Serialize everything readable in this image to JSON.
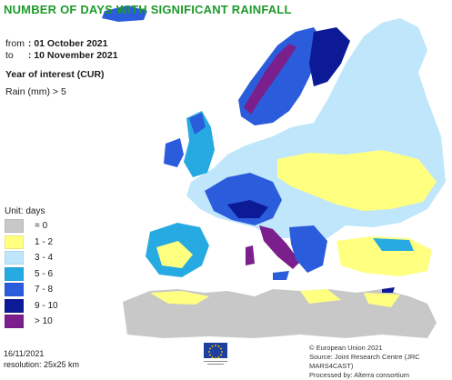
{
  "header": {
    "title": "NUMBER OF DAYS WITH SIGNIFICANT RAINFALL",
    "from_label": "from",
    "from_value": ": 01 October 2021",
    "to_label": "to",
    "to_value": ": 10 November 2021",
    "year_of_interest": "Year of interest (CUR)",
    "parameter": "Rain (mm) > 5"
  },
  "legend": {
    "unit": "Unit: days",
    "classes": [
      {
        "label": "= 0",
        "color": "#c8c8c8"
      },
      {
        "label": "1 - 2",
        "color": "#ffff80"
      },
      {
        "label": "3 - 4",
        "color": "#bfe6fa"
      },
      {
        "label": "5 - 6",
        "color": "#27aae1"
      },
      {
        "label": "7 - 8",
        "color": "#2a5cdc"
      },
      {
        "label": "9 - 10",
        "color": "#0d1a96"
      },
      {
        "label": "> 10",
        "color": "#7b1f8c"
      }
    ]
  },
  "map": {
    "land_no_data_color": "#ffffff",
    "outside_color": "#c8c8c8"
  },
  "footer": {
    "date": "16/11/2021",
    "resolution": "resolution: 25x25 km",
    "copyright": "© European Union 2021",
    "source": "Source: Joint Research Centre (JRC MARS4CAST)",
    "processed": "Processed by: Alterra consortium",
    "logo_caption": "European Commission"
  }
}
